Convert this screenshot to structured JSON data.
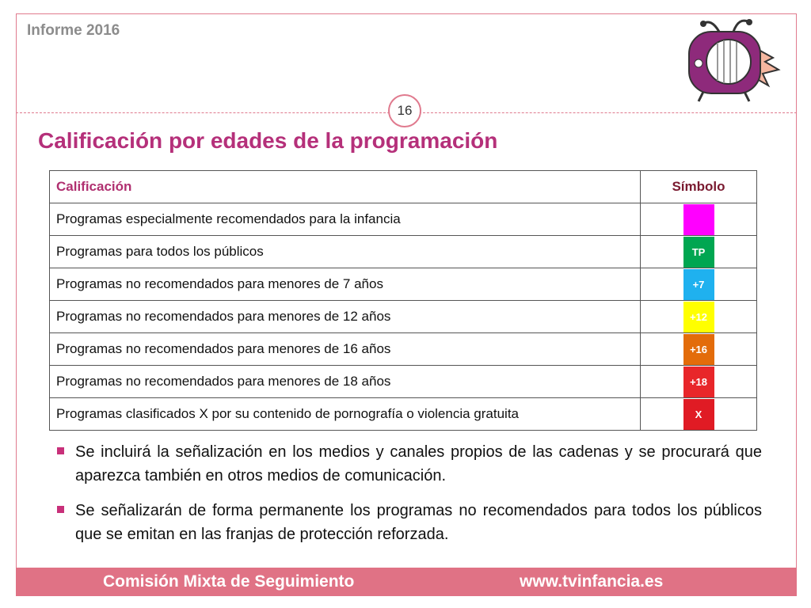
{
  "header": {
    "title": "Informe 2016",
    "page": "16"
  },
  "heading": "Calificación por edades de la programación",
  "table": {
    "columns": [
      "Calificación",
      "Símbolo"
    ],
    "rows": [
      {
        "label": "Programas especialmente recomendados para la infancia",
        "symbol": {
          "color": "#ff00ff"
        }
      },
      {
        "label": "Programas para todos los públicos",
        "symbol": {
          "text": "TP",
          "color": "#00a651"
        }
      },
      {
        "label": "Programas no recomendados para menores de 7 años",
        "symbol": {
          "text": "+7",
          "color": "#1fb1ef"
        }
      },
      {
        "label": "Programas no recomendados para menores de 12 años",
        "symbol": {
          "text": "+12",
          "color": "#ffff00"
        }
      },
      {
        "label": "Programas no recomendados para menores de 16 años",
        "symbol": {
          "text": "+16",
          "color": "#e36c0a"
        }
      },
      {
        "label": "Programas no recomendados para menores de 18 años",
        "symbol": {
          "text": "+18",
          "color": "#e8262a"
        }
      },
      {
        "label": "Programas clasificados X por su contenido de pornografía o violencia gratuita",
        "symbol": {
          "text": "X",
          "color": "#e01b24"
        }
      }
    ]
  },
  "bullets": [
    "Se incluirá la señalización en los medios y canales propios de las cadenas y se procurará que aparezca también en otros medios de comunicación.",
    "Se señalizarán de forma permanente los programas no recomendados para todos los públicos que se emitan en las franjas de protección reforzada."
  ],
  "footer": {
    "left": "Comisión Mixta de Seguimiento",
    "right": "www.tvinfancia.es"
  }
}
